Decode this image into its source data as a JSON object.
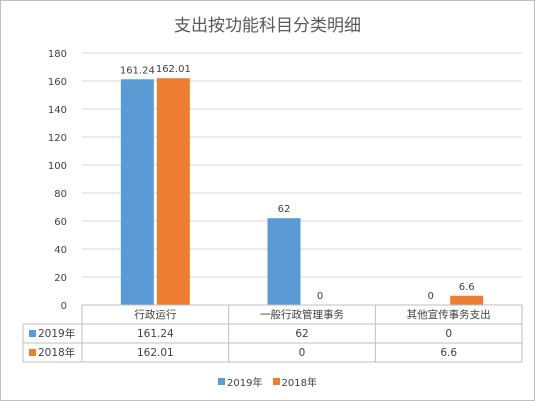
{
  "chart_data": {
    "type": "bar",
    "title": "支出按功能科目分类明细",
    "categories": [
      "行政运行",
      "一般行政管理事务",
      "其他宣传事务支出"
    ],
    "series": [
      {
        "name": "2019年",
        "values": [
          161.24,
          62,
          0
        ],
        "labels": [
          "161.24",
          "62",
          "0"
        ],
        "color": "#5B9BD5"
      },
      {
        "name": "2018年",
        "values": [
          162.01,
          0,
          6.6
        ],
        "labels": [
          "162.01",
          "0",
          "6.6"
        ],
        "color": "#ED7D31"
      }
    ],
    "ylim": [
      0,
      180
    ],
    "yticks": [
      0,
      20,
      40,
      60,
      80,
      100,
      120,
      140,
      160,
      180
    ],
    "grid": true,
    "legend": "bottom",
    "data_table": true
  }
}
